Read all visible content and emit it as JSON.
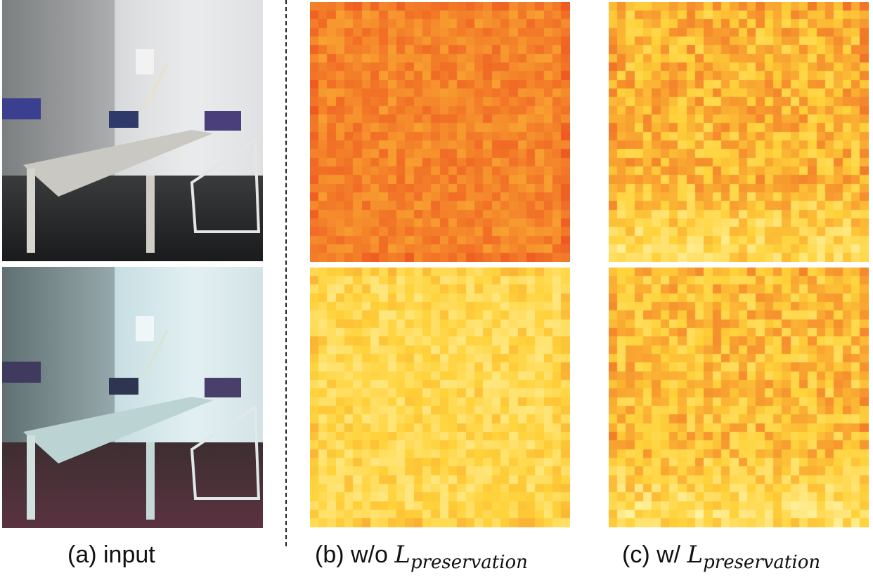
{
  "captions": {
    "a_prefix": "(a) input",
    "b_prefix": "(b) w/o",
    "c_prefix": "(c) w/",
    "loss_symbol": "L",
    "loss_subscript": "preservation"
  },
  "panels": {
    "input_top": "input image (normal exposure)",
    "input_bottom": "input image (color cast)"
  },
  "colors": {
    "heat_low": "#ffffcc",
    "heat_mid": "#ffd23a",
    "heat_high": "#ee5a22",
    "divider": "#222222"
  }
}
